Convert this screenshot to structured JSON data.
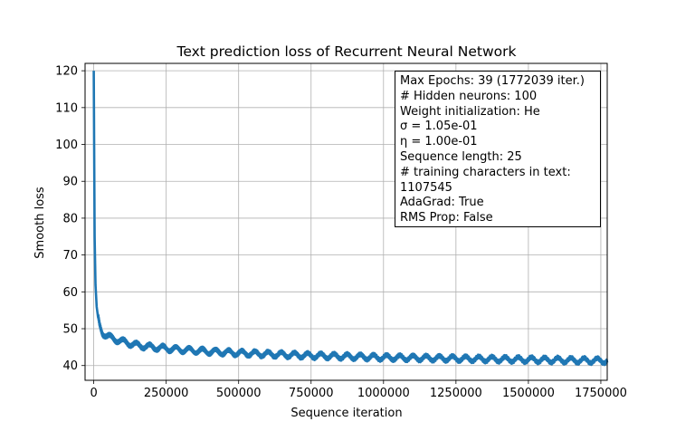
{
  "chart_data": {
    "type": "line",
    "title": "Text prediction loss of Recurrent Neural Network",
    "xlabel": "Sequence iteration",
    "ylabel": "Smooth loss",
    "xlim": [
      -30000,
      1772039
    ],
    "ylim": [
      36,
      122
    ],
    "x_ticks": [
      0,
      250000,
      500000,
      750000,
      1000000,
      1250000,
      1500000,
      1750000
    ],
    "x_tick_labels": [
      "0",
      "250000",
      "500000",
      "750000",
      "1000000",
      "1250000",
      "1500000",
      "1750000"
    ],
    "y_ticks": [
      40,
      50,
      60,
      70,
      80,
      90,
      100,
      110,
      120
    ],
    "y_tick_labels": [
      "40",
      "50",
      "60",
      "70",
      "80",
      "90",
      "100",
      "110",
      "120"
    ],
    "grid": true,
    "line_color": "#1f77b4",
    "series": [
      {
        "x": [
          0,
          3000,
          6000,
          10000,
          15000,
          20000,
          30000,
          45000,
          60000,
          80000,
          100000,
          150000,
          200000,
          300000,
          400000,
          500000,
          600000,
          750000,
          900000,
          1000000,
          1250000,
          1500000,
          1772039
        ],
        "y": [
          120,
          75,
          62,
          56,
          53,
          51,
          49,
          48,
          47.5,
          47,
          46.5,
          45.5,
          45,
          44.3,
          43.8,
          43.4,
          43.1,
          42.7,
          42.4,
          42.2,
          41.9,
          41.6,
          41.3
        ]
      }
    ],
    "oscillation": {
      "epochs": 39,
      "amplitude": 3
    },
    "legend_position": "upper right",
    "legend_lines": [
      "Max Epochs: 39 (1772039 iter.)",
      "# Hidden neurons: 100",
      "Weight initialization: He",
      "σ = 1.05e-01",
      "η = 1.00e-01",
      "Sequence length: 25",
      "# training characters in text:",
      "1107545",
      "AdaGrad: True",
      "RMS Prop: False"
    ]
  }
}
